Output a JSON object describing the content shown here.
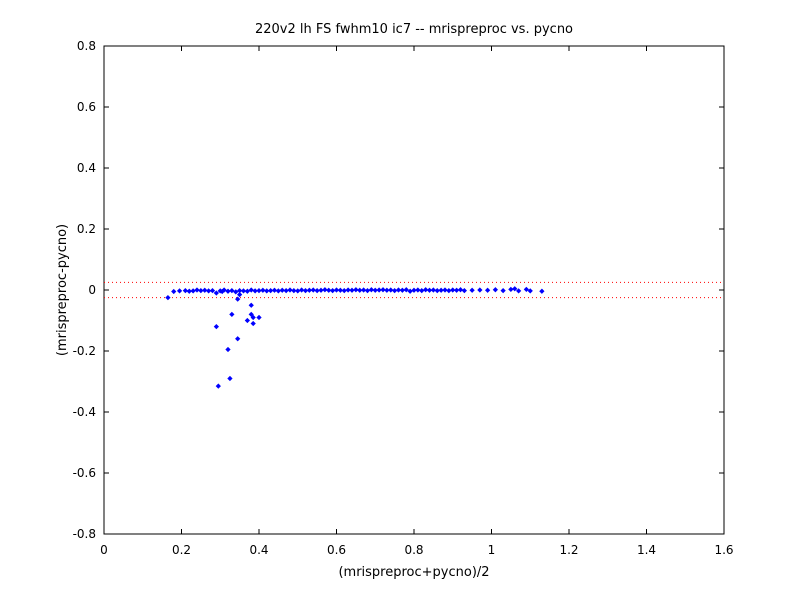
{
  "chart_data": {
    "type": "scatter",
    "title": "220v2 lh FS fwhm10 ic7 -- mrispreproc vs. pycno",
    "xlabel": "(mrispreproc+pycno)/2",
    "ylabel": "(mrispreproc-pycno)",
    "xlim": [
      0,
      1.6
    ],
    "ylim": [
      -0.8,
      0.8
    ],
    "xticks": [
      0,
      0.2,
      0.4,
      0.6,
      0.8,
      1,
      1.2,
      1.4,
      1.6
    ],
    "xtick_labels": [
      "0",
      "0.2",
      "0.4",
      "0.6",
      "0.8",
      "1",
      "1.2",
      "1.4",
      "1.6"
    ],
    "yticks": [
      -0.8,
      -0.6,
      -0.4,
      -0.2,
      0,
      0.2,
      0.4,
      0.6,
      0.8
    ],
    "ytick_labels": [
      "-0.8",
      "-0.6",
      "-0.4",
      "-0.2",
      "0",
      "0.2",
      "0.4",
      "0.6",
      "0.8"
    ],
    "grid": false,
    "legend": "none",
    "reference_lines": [
      0.025,
      -0.025
    ],
    "marker_color": "#0000ff",
    "reference_line_color": "#ff0000",
    "series": [
      {
        "points": [
          [
            0.165,
            -0.025
          ],
          [
            0.18,
            -0.005
          ],
          [
            0.195,
            -0.003
          ],
          [
            0.21,
            -0.002
          ],
          [
            0.22,
            -0.004
          ],
          [
            0.23,
            -0.003
          ],
          [
            0.24,
            0.0
          ],
          [
            0.25,
            -0.002
          ],
          [
            0.26,
            -0.001
          ],
          [
            0.27,
            -0.003
          ],
          [
            0.28,
            -0.002
          ],
          [
            0.29,
            -0.01
          ],
          [
            0.3,
            -0.003
          ],
          [
            0.305,
            -0.005
          ],
          [
            0.31,
            0.0
          ],
          [
            0.32,
            -0.004
          ],
          [
            0.33,
            -0.002
          ],
          [
            0.34,
            -0.006
          ],
          [
            0.35,
            -0.002
          ],
          [
            0.36,
            -0.003
          ],
          [
            0.37,
            -0.004
          ],
          [
            0.38,
            0.0
          ],
          [
            0.39,
            -0.003
          ],
          [
            0.4,
            -0.002
          ],
          [
            0.41,
            -0.001
          ],
          [
            0.42,
            -0.003
          ],
          [
            0.43,
            -0.002
          ],
          [
            0.44,
            -0.001
          ],
          [
            0.45,
            -0.003
          ],
          [
            0.46,
            -0.001
          ],
          [
            0.47,
            -0.002
          ],
          [
            0.48,
            0.0
          ],
          [
            0.49,
            -0.002
          ],
          [
            0.5,
            -0.003
          ],
          [
            0.51,
            0.0
          ],
          [
            0.52,
            -0.002
          ],
          [
            0.53,
            -0.001
          ],
          [
            0.54,
            0.0
          ],
          [
            0.55,
            -0.002
          ],
          [
            0.56,
            -0.001
          ],
          [
            0.57,
            0.001
          ],
          [
            0.58,
            -0.001
          ],
          [
            0.59,
            -0.002
          ],
          [
            0.6,
            0.0
          ],
          [
            0.61,
            -0.001
          ],
          [
            0.62,
            -0.002
          ],
          [
            0.63,
            0.0
          ],
          [
            0.64,
            -0.001
          ],
          [
            0.65,
            0.001
          ],
          [
            0.66,
            -0.001
          ],
          [
            0.67,
            0.0
          ],
          [
            0.68,
            -0.002
          ],
          [
            0.69,
            0.001
          ],
          [
            0.7,
            -0.001
          ],
          [
            0.71,
            0.0
          ],
          [
            0.72,
            0.001
          ],
          [
            0.73,
            -0.001
          ],
          [
            0.74,
            0.0
          ],
          [
            0.75,
            -0.002
          ],
          [
            0.76,
            0.0
          ],
          [
            0.77,
            -0.001
          ],
          [
            0.78,
            0.001
          ],
          [
            0.79,
            -0.004
          ],
          [
            0.8,
            -0.001
          ],
          [
            0.81,
            0.0
          ],
          [
            0.82,
            -0.002
          ],
          [
            0.83,
            0.001
          ],
          [
            0.84,
            -0.001
          ],
          [
            0.85,
            0.0
          ],
          [
            0.86,
            -0.002
          ],
          [
            0.87,
            -0.001
          ],
          [
            0.88,
            0.0
          ],
          [
            0.89,
            -0.002
          ],
          [
            0.9,
            0.0
          ],
          [
            0.91,
            -0.001
          ],
          [
            0.92,
            0.001
          ],
          [
            0.93,
            -0.002
          ],
          [
            0.95,
            -0.001
          ],
          [
            0.97,
            0.0
          ],
          [
            0.99,
            -0.001
          ],
          [
            1.01,
            0.001
          ],
          [
            1.03,
            -0.002
          ],
          [
            1.05,
            0.002
          ],
          [
            1.06,
            0.004
          ],
          [
            1.07,
            -0.003
          ],
          [
            1.09,
            0.002
          ],
          [
            1.1,
            -0.003
          ],
          [
            1.13,
            -0.004
          ],
          [
            0.345,
            -0.03
          ],
          [
            0.35,
            -0.015
          ],
          [
            0.29,
            -0.12
          ],
          [
            0.33,
            -0.08
          ],
          [
            0.345,
            -0.16
          ],
          [
            0.32,
            -0.195
          ],
          [
            0.37,
            -0.1
          ],
          [
            0.38,
            -0.08
          ],
          [
            0.385,
            -0.11
          ],
          [
            0.38,
            -0.05
          ],
          [
            0.385,
            -0.09
          ],
          [
            0.4,
            -0.09
          ],
          [
            0.295,
            -0.315
          ],
          [
            0.325,
            -0.29
          ]
        ]
      }
    ]
  }
}
